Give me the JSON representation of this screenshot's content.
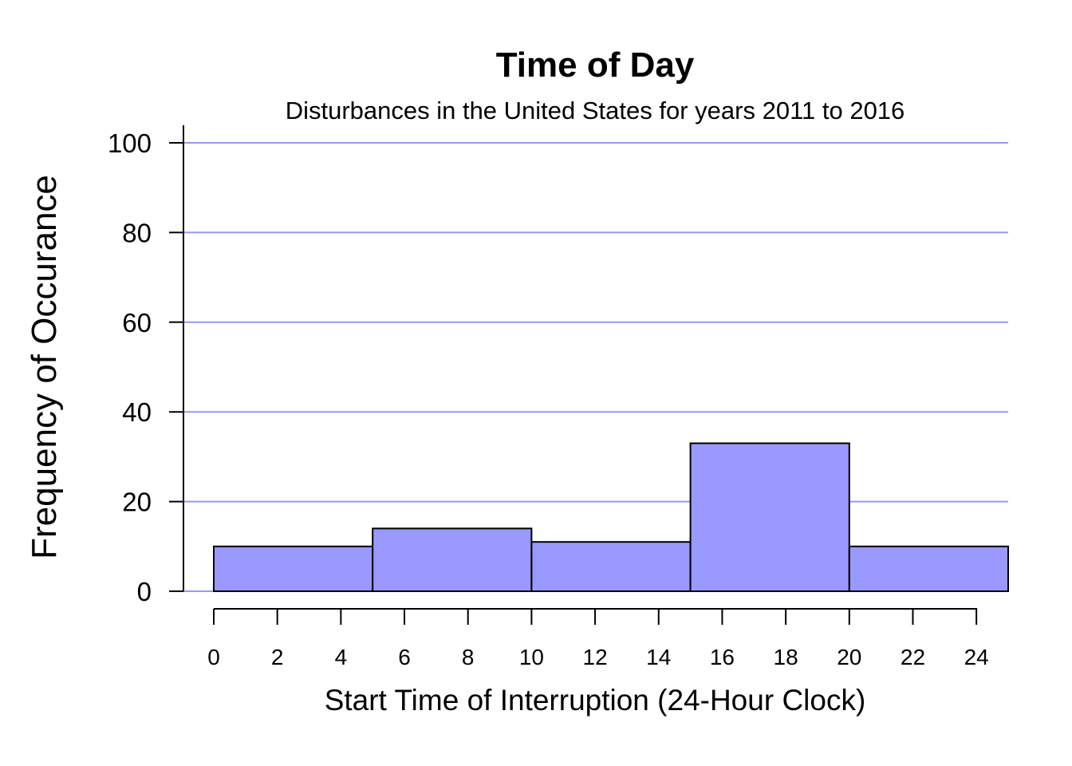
{
  "chart_data": {
    "type": "bar",
    "title": "Time of Day",
    "subtitle": "Disturbances in the United States for years 2011 to 2016",
    "xlabel": "Start Time of Interruption (24-Hour Clock)",
    "ylabel": "Frequency of Occurance",
    "bins": [
      {
        "start": 0,
        "end": 5,
        "value": 10
      },
      {
        "start": 5,
        "end": 10,
        "value": 14
      },
      {
        "start": 10,
        "end": 15,
        "value": 11
      },
      {
        "start": 15,
        "end": 20,
        "value": 33
      },
      {
        "start": 20,
        "end": 25,
        "value": 10
      }
    ],
    "xlim": [
      0,
      25
    ],
    "ylim": [
      0,
      100
    ],
    "x_ticks": [
      "0",
      "2",
      "4",
      "6",
      "8",
      "10",
      "12",
      "14",
      "16",
      "18",
      "20",
      "22",
      "24"
    ],
    "y_ticks": [
      "0",
      "20",
      "40",
      "60",
      "80",
      "100"
    ],
    "grid": "horizontal",
    "colors": {
      "bar": "#9999ff",
      "grid": "#9999ee",
      "outline": "#000000"
    }
  }
}
